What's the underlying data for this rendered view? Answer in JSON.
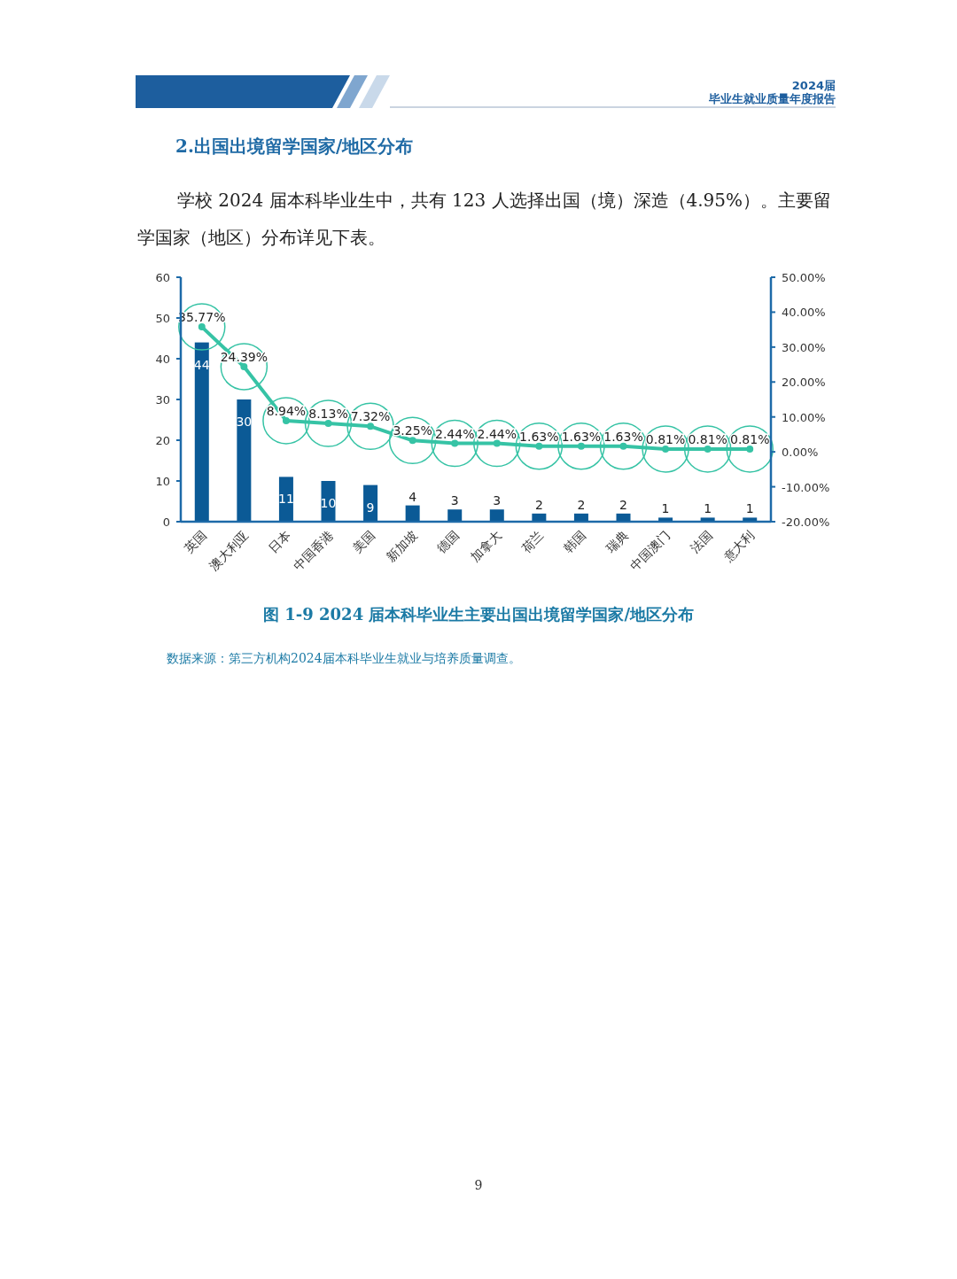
{
  "chart_data": {
    "type": "bar",
    "title": "图 1-9  2024 届本科毕业生主要出国出境留学国家/地区分布",
    "annotations": [
      "2024届",
      "毕业生就业质量年度报告",
      "2.出国出境留学国家/地区分布",
      "学校 2024 届本科毕业生中，共有 123 人选择出国（境）深造（4.95%）。主要留学国家（地区）分布详见下表。",
      "数据来源：第三方机构2024届本科毕业生就业与培养质量调查。",
      "9"
    ],
    "categories": [
      "英国",
      "澳大利亚",
      "日本",
      "中国香港",
      "美国",
      "新加坡",
      "德国",
      "加拿大",
      "荷兰",
      "韩国",
      "瑞典",
      "中国澳门",
      "法国",
      "意大利"
    ],
    "series": [
      {
        "color": "#0b5a96",
        "data_labels": true,
        "values": [
          44,
          30,
          11,
          10,
          9,
          4,
          3,
          3,
          2,
          2,
          2,
          1,
          1,
          1
        ]
      },
      {
        "type": "line",
        "axis": "y2",
        "color": "#36c3a5",
        "marker": "circle",
        "values": [
          35.77,
          24.39,
          8.94,
          8.13,
          7.32,
          3.25,
          2.44,
          2.44,
          1.63,
          1.63,
          1.63,
          0.81,
          0.81,
          0.81
        ],
        "value_labels": [
          "35.77%",
          "24.39%",
          "8.94%",
          "8.13%",
          "7.32%",
          "3.25%",
          "2.44%",
          "2.44%",
          "1.63%",
          "1.63%",
          "1.63%",
          "0.81%",
          "0.81%",
          "0.81%"
        ]
      }
    ],
    "ylim": [
      0,
      60
    ],
    "yticks": [
      0,
      10,
      20,
      30,
      40,
      50,
      60
    ],
    "y2lim": [
      -20,
      50
    ],
    "y2ticks": [
      {
        "value": -20,
        "label": "-20.00%"
      },
      {
        "value": -10,
        "label": "-10.00%"
      },
      {
        "value": 0,
        "label": "0.00%"
      },
      {
        "value": 10,
        "label": "10.00%"
      },
      {
        "value": 20,
        "label": "20.00%"
      },
      {
        "value": 30,
        "label": "30.00%"
      },
      {
        "value": 40,
        "label": "40.00%"
      },
      {
        "value": 50,
        "label": "50.00%"
      }
    ],
    "grid": false
  }
}
